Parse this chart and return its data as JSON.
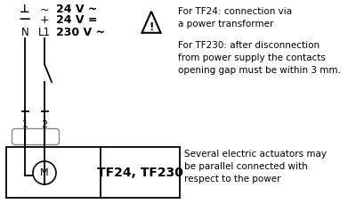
{
  "bg_color": "#ffffff",
  "line_color": "#000000",
  "sym_perp": "⊥",
  "sym_dash": "—",
  "sym_N": "N",
  "sym_tilde": "~",
  "sym_plus": "+",
  "sym_L1": "L1",
  "v1": "24 V ~",
  "v2": "24 V =",
  "v3": "230 V ~",
  "warning_text_1": "For TF24: connection via\na power transformer",
  "warning_text_2": "For TF230: after disconnection\nfrom power supply the contacts\nopening gap must be within 3 mm.",
  "bottom_text": "Several electric actuators may\nbe parallel connected with\nrespect to the power",
  "label_1": "1",
  "label_2": "2",
  "motor_label": "M",
  "tf_label": "TF24, TF230"
}
